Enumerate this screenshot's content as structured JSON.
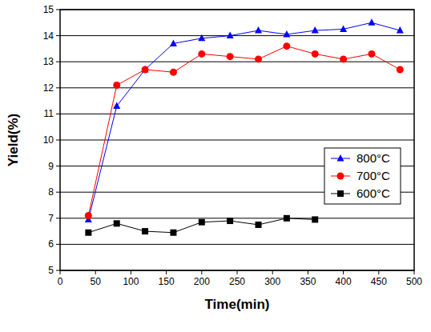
{
  "chart_data": {
    "type": "line",
    "x_label": "Time(min)",
    "y_label": "Yield(%)",
    "x": [
      40,
      80,
      120,
      160,
      200,
      240,
      280,
      320,
      360,
      400,
      440,
      480
    ],
    "series": [
      {
        "name": "800°C",
        "color": "#0000ff",
        "marker": "triangle",
        "line_style": "solid",
        "values": [
          6.95,
          11.3,
          12.7,
          13.7,
          13.9,
          14.0,
          14.2,
          14.05,
          14.2,
          14.25,
          14.5,
          14.2
        ]
      },
      {
        "name": "700°C",
        "color": "#ff0000",
        "marker": "circle",
        "line_style": "solid",
        "values": [
          7.1,
          12.1,
          12.7,
          12.6,
          13.3,
          13.2,
          13.1,
          13.6,
          13.3,
          13.1,
          13.3,
          12.7
        ]
      },
      {
        "name": "600°C",
        "color": "#000000",
        "marker": "square",
        "line_style": "solid",
        "values": [
          6.45,
          6.8,
          6.5,
          6.45,
          6.85,
          6.9,
          6.75,
          7.0,
          6.95,
          null,
          null,
          null
        ]
      }
    ],
    "xlim": [
      0,
      500
    ],
    "xticks": [
      0,
      50,
      100,
      150,
      200,
      250,
      300,
      350,
      400,
      450,
      500
    ],
    "ylim": [
      5,
      15
    ],
    "yticks": [
      5,
      6,
      7,
      8,
      9,
      10,
      11,
      12,
      13,
      14,
      15
    ],
    "grid": true,
    "legend": "right"
  }
}
